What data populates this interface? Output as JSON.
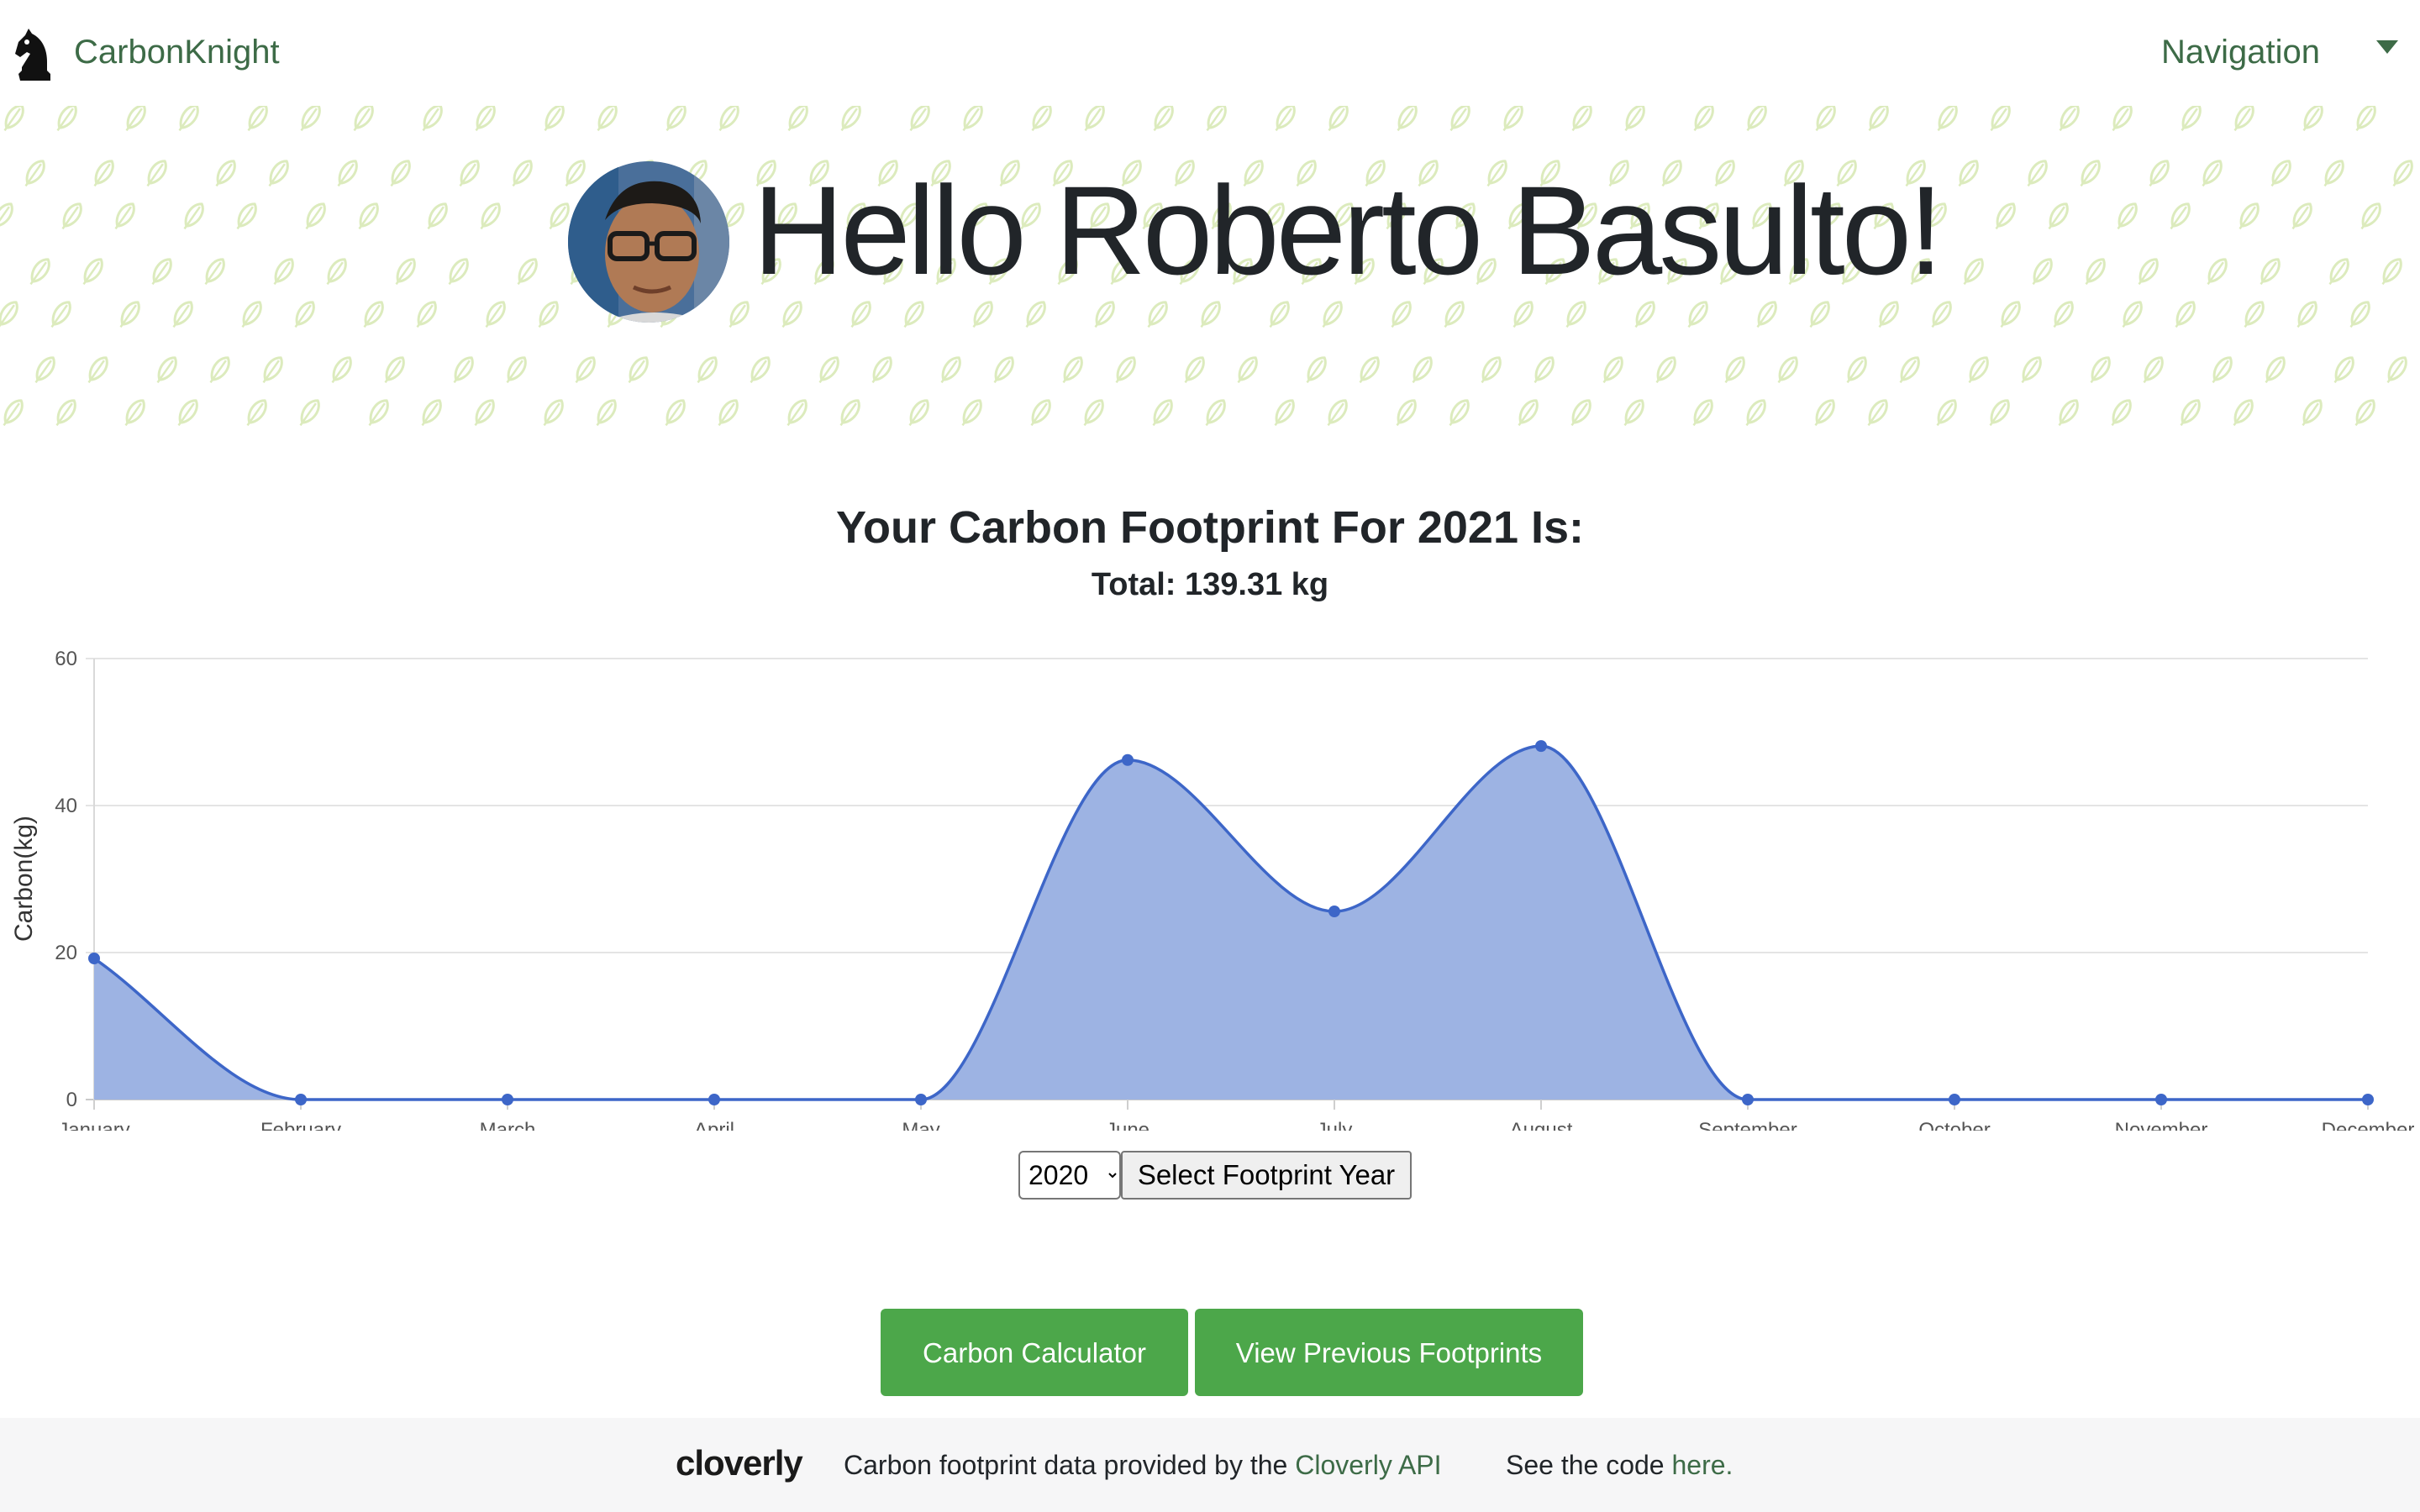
{
  "header": {
    "brand": "CarbonKnight",
    "nav_label": "Navigation"
  },
  "hero": {
    "greeting": "Hello Roberto Basulto!"
  },
  "footprint": {
    "title": "Your Carbon Footprint For 2021 Is:",
    "total": "Total: 139.31 kg"
  },
  "chart_data": {
    "type": "area",
    "ylabel": "Carbon(kg)",
    "ylim": [
      0,
      60
    ],
    "yticks": [
      "0",
      "20",
      "40",
      "60"
    ],
    "categories": [
      "January",
      "February",
      "March",
      "April",
      "May",
      "June",
      "July",
      "August",
      "September",
      "October",
      "November",
      "December"
    ],
    "values": [
      19.2,
      0,
      0,
      0,
      0,
      46.2,
      25.6,
      48.1,
      0,
      0,
      0,
      0
    ],
    "grid": true,
    "line_color": "#3d66c8",
    "fill_color": "#9db3e3"
  },
  "year_selector": {
    "selected": "2020",
    "button_label": "Select Footprint Year"
  },
  "actions": {
    "calculator_label": "Carbon Calculator",
    "previous_label": "View Previous Footprints"
  },
  "footer": {
    "logo_text": "cloverly",
    "credit_prefix": "Carbon footprint data provided by the ",
    "credit_link": "Cloverly API",
    "code_prefix": "See the code ",
    "code_link": "here."
  },
  "colors": {
    "brand_green": "#3d6b47",
    "button_green": "#4ca74a",
    "leaf_pattern": "#dcebbd"
  },
  "icons": {
    "brand": "chess-knight-icon",
    "nav": "caret-down-icon"
  }
}
